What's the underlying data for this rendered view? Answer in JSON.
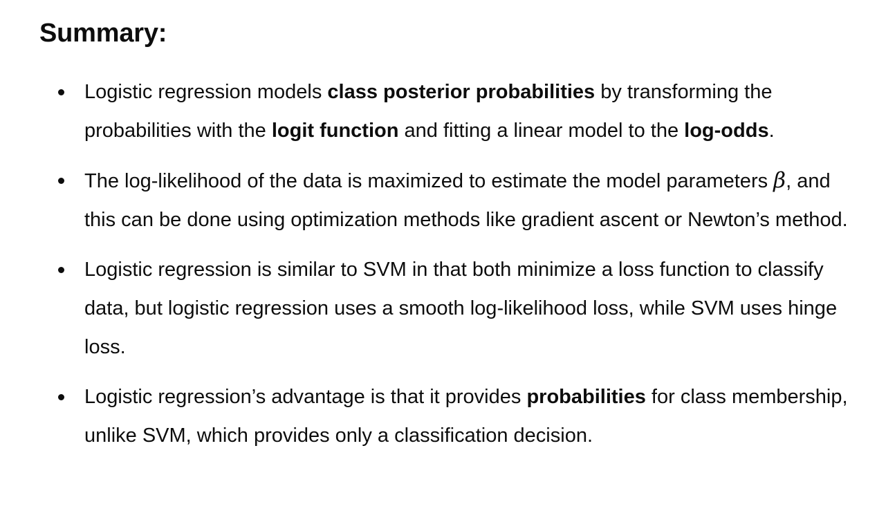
{
  "heading": "Summary:",
  "items": [
    {
      "parts": [
        {
          "text": "Logistic regression models ",
          "bold": false
        },
        {
          "text": "class posterior probabilities",
          "bold": true
        },
        {
          "text": " by transforming the probabilities with the ",
          "bold": false
        },
        {
          "text": "logit function",
          "bold": true
        },
        {
          "text": " and fitting a linear model to the ",
          "bold": false
        },
        {
          "text": "log-odds",
          "bold": true
        },
        {
          "text": ".",
          "bold": false
        }
      ]
    },
    {
      "parts": [
        {
          "text": "The log-likelihood of the data is maximized to estimate the model parameters ",
          "bold": false
        },
        {
          "text": "β",
          "math": true
        },
        {
          "text": ", and this can be done using optimization methods like gradient ascent or Newton’s method.",
          "bold": false
        }
      ]
    },
    {
      "parts": [
        {
          "text": "Logistic regression is similar to SVM in that both minimize a loss function to classify data, but logistic regression uses a smooth log-likelihood loss, while SVM uses hinge loss.",
          "bold": false
        }
      ]
    },
    {
      "parts": [
        {
          "text": "Logistic regression’s advantage is that it provides ",
          "bold": false
        },
        {
          "text": "probabilities",
          "bold": true
        },
        {
          "text": " for class membership, unlike SVM, which provides only a classification decision.",
          "bold": false
        }
      ]
    }
  ]
}
